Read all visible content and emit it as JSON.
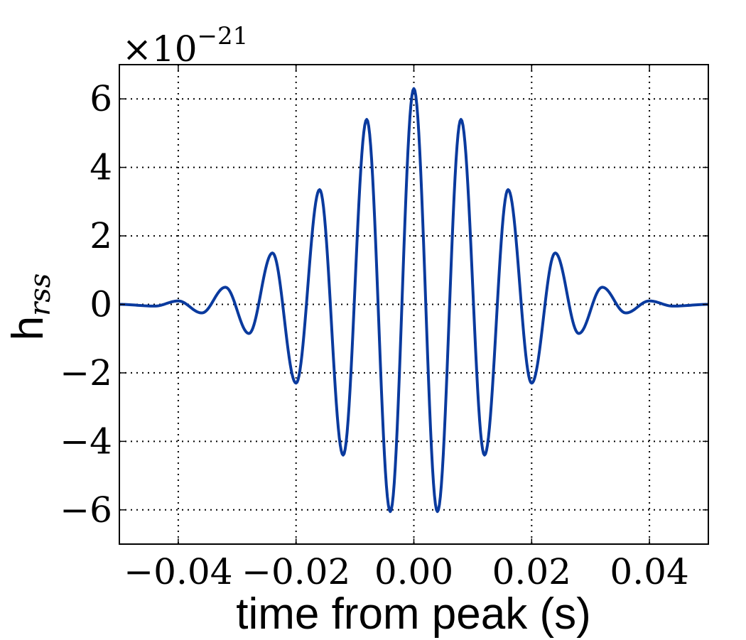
{
  "chart_data": {
    "type": "line",
    "xlabel": "time from peak (s)",
    "ylabel_main": "h",
    "ylabel_sub": "rss",
    "offset_prefix": "×10",
    "offset_exponent": "−21",
    "xlim": [
      -0.05,
      0.05
    ],
    "ylim": [
      -7,
      7
    ],
    "grid": true,
    "x_ticks": [
      {
        "value": -0.04,
        "label": "−0.04"
      },
      {
        "value": -0.02,
        "label": "−0.02"
      },
      {
        "value": 0.0,
        "label": "0.00"
      },
      {
        "value": 0.02,
        "label": "0.02"
      },
      {
        "value": 0.04,
        "label": "0.04"
      }
    ],
    "y_ticks": [
      {
        "value": 6,
        "label": "6"
      },
      {
        "value": 4,
        "label": "4"
      },
      {
        "value": 2,
        "label": "2"
      },
      {
        "value": 0,
        "label": "0"
      },
      {
        "value": -2,
        "label": "−2"
      },
      {
        "value": -4,
        "label": "−4"
      },
      {
        "value": -6,
        "label": "−6"
      }
    ],
    "series": [
      {
        "color": "#0a3a9e",
        "x": [
          -0.05,
          -0.044,
          -0.04,
          -0.036,
          -0.032,
          -0.028,
          -0.024,
          -0.02,
          -0.016,
          -0.012,
          -0.008,
          -0.004,
          0.0,
          0.004,
          0.008,
          0.012,
          0.016,
          0.02,
          0.024,
          0.028,
          0.032,
          0.036,
          0.04,
          0.044,
          0.05
        ],
        "y": [
          0.0,
          -0.05,
          0.1,
          -0.25,
          0.5,
          -0.85,
          1.5,
          -2.3,
          3.35,
          -4.4,
          5.4,
          -6.05,
          6.3,
          -6.05,
          5.4,
          -4.4,
          3.35,
          -2.3,
          1.5,
          -0.85,
          0.5,
          -0.25,
          0.1,
          -0.05,
          0.0
        ]
      }
    ]
  }
}
